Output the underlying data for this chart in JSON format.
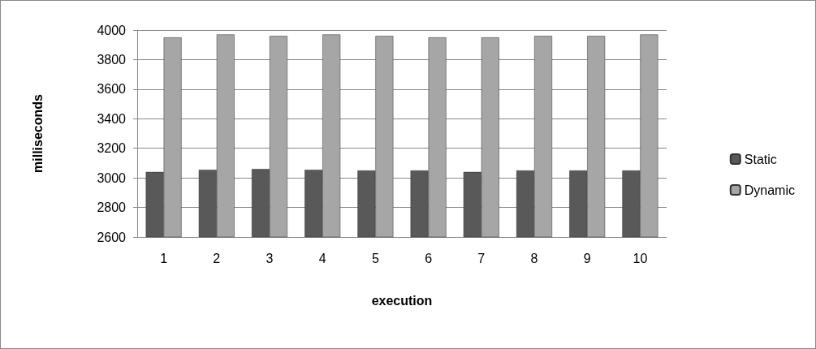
{
  "chart_data": {
    "type": "bar",
    "xlabel": "execution",
    "ylabel": "milliseconds",
    "categories": [
      "1",
      "2",
      "3",
      "4",
      "5",
      "6",
      "7",
      "8",
      "9",
      "10"
    ],
    "series": [
      {
        "name": "Static",
        "color": "#595959",
        "values": [
          3040,
          3055,
          3060,
          3055,
          3050,
          3050,
          3040,
          3050,
          3050,
          3050
        ]
      },
      {
        "name": "Dynamic",
        "color": "#a6a6a6",
        "values": [
          3950,
          3970,
          3960,
          3970,
          3960,
          3950,
          3950,
          3960,
          3960,
          3970
        ]
      }
    ],
    "ylim": [
      2600,
      4000
    ],
    "yticks": [
      2600,
      2800,
      3000,
      3200,
      3400,
      3600,
      3800,
      4000
    ],
    "grid": "y",
    "legend": "right"
  }
}
